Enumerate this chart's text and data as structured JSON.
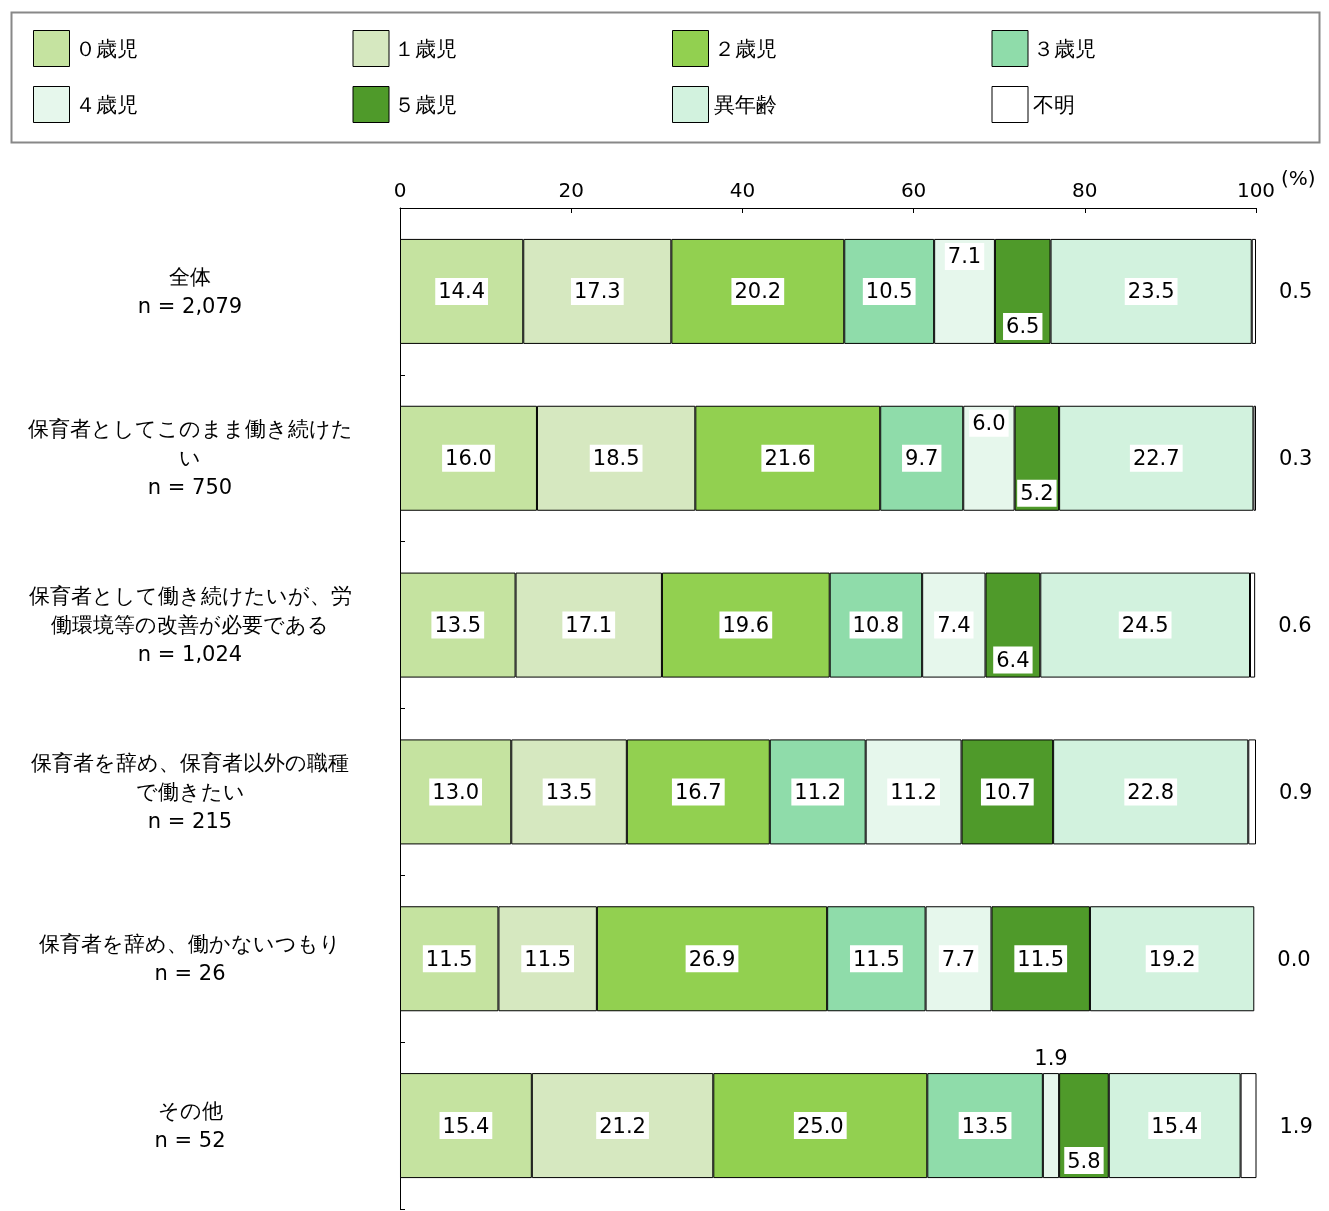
{
  "chart_data": {
    "type": "bar",
    "orientation": "horizontal",
    "stacked": true,
    "legend": "top",
    "grid": false,
    "xlabel": "(%)",
    "xlim": [
      0,
      100
    ],
    "xticks": [
      0,
      20,
      40,
      60,
      80,
      100
    ],
    "categories": [
      "全体\nn = 2,079",
      "保育者としてこのまま働き続けたい\nn = 750",
      "保育者として働き続けたいが、労働環境等の改善が必要である\nn = 1,024",
      "保育者を辞め、保育者以外の職種で働きたい\nn = 215",
      "保育者を辞め、働かないつもり\nn = 26",
      "その他\nn = 52"
    ],
    "series": [
      {
        "name": "０歳児",
        "color": "#c5e3a0",
        "values": [
          14.4,
          16.0,
          13.5,
          13.0,
          11.5,
          15.4
        ],
        "value_labels": [
          "14.4",
          "16.0",
          "13.5",
          "13.0",
          "11.5",
          "15.4"
        ]
      },
      {
        "name": "１歳児",
        "color": "#d6e8c0",
        "values": [
          17.3,
          18.5,
          17.1,
          13.5,
          11.5,
          21.2
        ],
        "value_labels": [
          "17.3",
          "18.5",
          "17.1",
          "13.5",
          "11.5",
          "21.2"
        ]
      },
      {
        "name": "２歳児",
        "color": "#92d050",
        "values": [
          20.2,
          21.6,
          19.6,
          16.7,
          26.9,
          25.0
        ],
        "value_labels": [
          "20.2",
          "21.6",
          "19.6",
          "16.7",
          "26.9",
          "25.0"
        ]
      },
      {
        "name": "３歳児",
        "color": "#8fdcaa",
        "values": [
          10.5,
          9.7,
          10.8,
          11.2,
          11.5,
          13.5
        ],
        "value_labels": [
          "10.5",
          "9.7",
          "10.8",
          "11.2",
          "11.5",
          "13.5"
        ]
      },
      {
        "name": "４歳児",
        "color": "#e6f7ec",
        "values": [
          7.1,
          6.0,
          7.4,
          11.2,
          7.7,
          1.9
        ],
        "value_labels": [
          "7.1",
          "6.0",
          "7.4",
          "11.2",
          "7.7",
          "1.9"
        ]
      },
      {
        "name": "５歳児",
        "color": "#4f9a2a",
        "values": [
          6.5,
          5.2,
          6.4,
          10.7,
          11.5,
          5.8
        ],
        "value_labels": [
          "6.5",
          "5.2",
          "6.4",
          "10.7",
          "11.5",
          "5.8"
        ]
      },
      {
        "name": "異年齢",
        "color": "#d2f2de",
        "values": [
          23.5,
          22.7,
          24.5,
          22.8,
          19.2,
          15.4
        ],
        "value_labels": [
          "23.5",
          "22.7",
          "24.5",
          "22.8",
          "19.2",
          "15.4"
        ]
      },
      {
        "name": "不明",
        "color": "#ffffff",
        "values": [
          0.5,
          0.3,
          0.6,
          0.9,
          0.0,
          1.9
        ],
        "value_labels": [
          "0.5",
          "0.3",
          "0.6",
          "0.9",
          "0.0",
          "1.9"
        ]
      }
    ]
  }
}
